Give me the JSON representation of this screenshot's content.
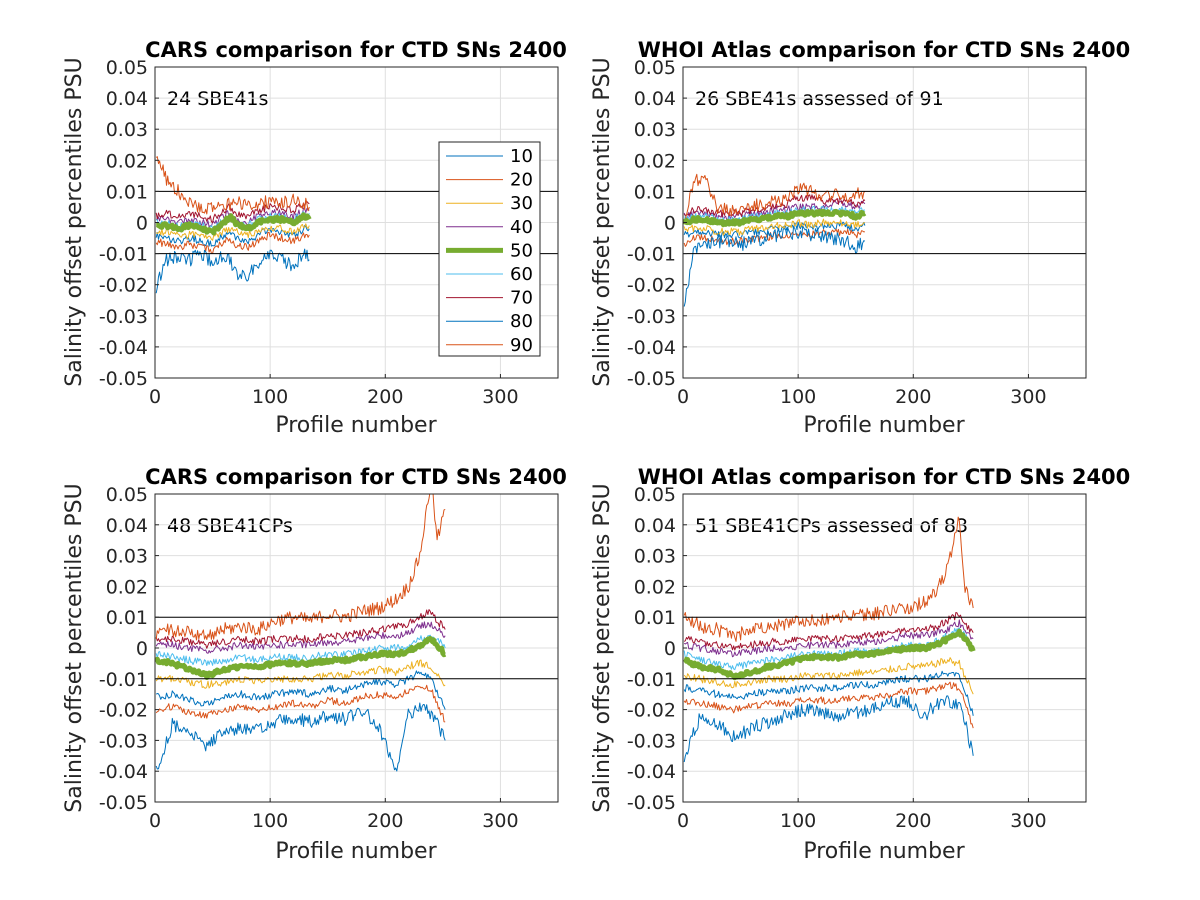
{
  "figure": {
    "background": "#ffffff",
    "colors": {
      "10": "#0072BD",
      "20": "#D95319",
      "30": "#EDB120",
      "40": "#7E2F8E",
      "50": "#77AC30",
      "60": "#4DBEEE",
      "70": "#A2142F",
      "80": "#0072BD",
      "90": "#D95319",
      "reference": "#000000",
      "grid": "#DFDFDF"
    }
  },
  "legend": {
    "placement": "right, inside top-left panel",
    "entries": [
      "10",
      "20",
      "30",
      "40",
      "50",
      "60",
      "70",
      "80",
      "90"
    ]
  },
  "chart_data": [
    {
      "type": "line",
      "title": "CARS comparison for CTD SNs 2400",
      "annotation": "24 SBE41s",
      "xlabel": "Profile number",
      "ylabel": "Salinity offset percentiles PSU",
      "xlim": [
        0,
        350
      ],
      "ylim": [
        -0.05,
        0.05
      ],
      "xticks": [
        "0",
        "100",
        "200",
        "300"
      ],
      "yticks": [
        "-0.05",
        "-0.04",
        "-0.03",
        "-0.02",
        "-0.01",
        "0",
        "0.01",
        "0.02",
        "0.03",
        "0.04",
        "0.05"
      ],
      "grid": true,
      "reference_lines": [
        0.01,
        -0.01
      ],
      "x": [
        1,
        10,
        20,
        30,
        40,
        50,
        60,
        65,
        70,
        80,
        90,
        100,
        110,
        120,
        130,
        134
      ],
      "series": [
        {
          "name": "10",
          "values": [
            -0.004,
            -0.005,
            -0.006,
            -0.005,
            -0.006,
            -0.007,
            -0.004,
            -0.003,
            -0.005,
            -0.006,
            -0.004,
            -0.002,
            -0.003,
            -0.004,
            -0.002,
            -0.002
          ]
        },
        {
          "name": "20",
          "values": [
            -0.006,
            -0.007,
            -0.008,
            -0.007,
            -0.008,
            -0.009,
            -0.006,
            -0.005,
            -0.007,
            -0.008,
            -0.006,
            -0.004,
            -0.005,
            -0.006,
            -0.004,
            -0.004
          ]
        },
        {
          "name": "30",
          "values": [
            -0.003,
            -0.003,
            -0.004,
            -0.004,
            -0.004,
            -0.005,
            -0.003,
            -0.002,
            -0.003,
            -0.004,
            -0.003,
            -0.002,
            -0.002,
            -0.003,
            -0.001,
            -0.001
          ]
        },
        {
          "name": "40",
          "values": [
            0.001,
            0.001,
            0.0,
            0.001,
            0.0,
            -0.001,
            0.002,
            0.003,
            0.001,
            0.0,
            0.002,
            0.003,
            0.003,
            0.002,
            0.004,
            0.004
          ]
        },
        {
          "name": "50",
          "values": [
            -0.001,
            -0.001,
            -0.002,
            -0.001,
            -0.002,
            -0.003,
            0.0,
            0.002,
            0.0,
            -0.002,
            0.0,
            0.001,
            0.001,
            0.0,
            0.002,
            0.001
          ]
        },
        {
          "name": "60",
          "values": [
            0.0,
            0.0,
            -0.001,
            0.0,
            -0.001,
            -0.002,
            0.001,
            0.002,
            0.0,
            -0.001,
            0.001,
            0.002,
            0.002,
            0.001,
            0.003,
            0.003
          ]
        },
        {
          "name": "70",
          "values": [
            0.002,
            0.003,
            0.002,
            0.003,
            0.002,
            0.001,
            0.004,
            0.005,
            0.003,
            0.002,
            0.004,
            0.005,
            0.005,
            0.004,
            0.006,
            0.006
          ]
        },
        {
          "name": "80",
          "values": [
            -0.021,
            -0.012,
            -0.011,
            -0.012,
            -0.01,
            -0.013,
            -0.011,
            -0.012,
            -0.016,
            -0.017,
            -0.013,
            -0.011,
            -0.012,
            -0.014,
            -0.01,
            -0.012
          ]
        },
        {
          "name": "90",
          "values": [
            0.022,
            0.014,
            0.01,
            0.007,
            0.004,
            0.005,
            0.006,
            0.006,
            0.007,
            0.005,
            0.006,
            0.007,
            0.006,
            0.007,
            0.006,
            0.005
          ]
        }
      ]
    },
    {
      "type": "line",
      "title": "WHOI Atlas comparison for CTD SNs 2400",
      "annotation": "26 SBE41s assessed of 91",
      "xlabel": "Profile number",
      "ylabel": "Salinity offset percentiles PSU",
      "xlim": [
        0,
        350
      ],
      "ylim": [
        -0.05,
        0.05
      ],
      "xticks": [
        "0",
        "100",
        "200",
        "300"
      ],
      "yticks": [
        "-0.05",
        "-0.04",
        "-0.03",
        "-0.02",
        "-0.01",
        "0",
        "0.01",
        "0.02",
        "0.03",
        "0.04",
        "0.05"
      ],
      "grid": true,
      "reference_lines": [
        0.01,
        -0.01
      ],
      "x": [
        1,
        10,
        20,
        30,
        40,
        50,
        60,
        70,
        80,
        90,
        100,
        110,
        120,
        130,
        140,
        150,
        158
      ],
      "series": [
        {
          "name": "10",
          "values": [
            -0.004,
            -0.003,
            -0.003,
            -0.004,
            -0.004,
            -0.004,
            -0.003,
            -0.003,
            -0.002,
            -0.002,
            -0.001,
            -0.002,
            -0.001,
            -0.001,
            -0.001,
            -0.002,
            -0.001
          ]
        },
        {
          "name": "20",
          "values": [
            -0.007,
            -0.005,
            -0.005,
            -0.006,
            -0.006,
            -0.006,
            -0.005,
            -0.005,
            -0.004,
            -0.004,
            -0.003,
            -0.004,
            -0.003,
            -0.003,
            -0.003,
            -0.004,
            -0.003
          ]
        },
        {
          "name": "30",
          "values": [
            -0.002,
            -0.002,
            -0.002,
            -0.003,
            -0.003,
            -0.003,
            -0.002,
            -0.002,
            -0.001,
            -0.001,
            0.0,
            -0.001,
            0.0,
            0.0,
            0.0,
            -0.001,
            0.0
          ]
        },
        {
          "name": "40",
          "values": [
            0.002,
            0.003,
            0.003,
            0.002,
            0.002,
            0.002,
            0.003,
            0.003,
            0.004,
            0.004,
            0.005,
            0.005,
            0.005,
            0.006,
            0.006,
            0.005,
            0.006
          ]
        },
        {
          "name": "50",
          "values": [
            0.0,
            0.001,
            0.001,
            0.0,
            0.0,
            0.0,
            0.001,
            0.001,
            0.002,
            0.002,
            0.003,
            0.003,
            0.003,
            0.003,
            0.003,
            0.002,
            0.003
          ]
        },
        {
          "name": "60",
          "values": [
            0.001,
            0.002,
            0.002,
            0.001,
            0.001,
            0.001,
            0.002,
            0.002,
            0.003,
            0.003,
            0.004,
            0.004,
            0.004,
            0.004,
            0.004,
            0.003,
            0.004
          ]
        },
        {
          "name": "70",
          "values": [
            0.003,
            0.004,
            0.004,
            0.003,
            0.003,
            0.003,
            0.004,
            0.004,
            0.005,
            0.006,
            0.008,
            0.008,
            0.007,
            0.007,
            0.007,
            0.006,
            0.007
          ]
        },
        {
          "name": "80",
          "values": [
            -0.027,
            -0.008,
            -0.007,
            -0.006,
            -0.006,
            -0.007,
            -0.006,
            -0.005,
            -0.004,
            -0.004,
            -0.003,
            -0.004,
            -0.004,
            -0.005,
            -0.006,
            -0.008,
            -0.006
          ]
        },
        {
          "name": "90",
          "values": [
            -0.001,
            0.014,
            0.013,
            0.005,
            0.004,
            0.004,
            0.005,
            0.006,
            0.007,
            0.008,
            0.011,
            0.01,
            0.009,
            0.009,
            0.008,
            0.009,
            0.01
          ]
        }
      ]
    },
    {
      "type": "line",
      "title": "CARS comparison for CTD SNs 2400",
      "annotation": "48 SBE41CPs",
      "xlabel": "Profile number",
      "ylabel": "Salinity offset percentiles PSU",
      "xlim": [
        0,
        350
      ],
      "ylim": [
        -0.05,
        0.05
      ],
      "xticks": [
        "0",
        "100",
        "200",
        "300"
      ],
      "yticks": [
        "-0.05",
        "-0.04",
        "-0.03",
        "-0.02",
        "-0.01",
        "0",
        "0.01",
        "0.02",
        "0.03",
        "0.04",
        "0.05"
      ],
      "grid": true,
      "reference_lines": [
        0.01,
        -0.01
      ],
      "x": [
        1,
        15,
        30,
        45,
        60,
        75,
        90,
        105,
        120,
        135,
        150,
        165,
        180,
        195,
        210,
        220,
        230,
        240,
        245,
        252
      ],
      "series": [
        {
          "name": "10",
          "values": [
            -0.016,
            -0.015,
            -0.017,
            -0.018,
            -0.016,
            -0.015,
            -0.016,
            -0.015,
            -0.014,
            -0.015,
            -0.013,
            -0.014,
            -0.012,
            -0.011,
            -0.012,
            -0.01,
            -0.008,
            -0.01,
            -0.014,
            -0.02
          ]
        },
        {
          "name": "20",
          "values": [
            -0.02,
            -0.019,
            -0.021,
            -0.022,
            -0.02,
            -0.019,
            -0.02,
            -0.019,
            -0.018,
            -0.019,
            -0.017,
            -0.018,
            -0.016,
            -0.015,
            -0.016,
            -0.014,
            -0.012,
            -0.014,
            -0.018,
            -0.024
          ]
        },
        {
          "name": "30",
          "values": [
            -0.01,
            -0.01,
            -0.011,
            -0.012,
            -0.011,
            -0.01,
            -0.011,
            -0.01,
            -0.01,
            -0.01,
            -0.009,
            -0.009,
            -0.008,
            -0.007,
            -0.008,
            -0.006,
            -0.005,
            -0.006,
            -0.008,
            -0.012
          ]
        },
        {
          "name": "40",
          "values": [
            0.001,
            0.001,
            0.0,
            -0.001,
            0.0,
            0.001,
            0.0,
            0.001,
            0.001,
            0.001,
            0.002,
            0.002,
            0.003,
            0.004,
            0.004,
            0.005,
            0.007,
            0.008,
            0.006,
            0.004
          ]
        },
        {
          "name": "50",
          "values": [
            -0.004,
            -0.005,
            -0.007,
            -0.009,
            -0.007,
            -0.006,
            -0.006,
            -0.005,
            -0.005,
            -0.005,
            -0.004,
            -0.004,
            -0.003,
            -0.002,
            -0.002,
            -0.001,
            0.001,
            0.003,
            0.001,
            -0.002
          ]
        },
        {
          "name": "60",
          "values": [
            -0.002,
            -0.003,
            -0.004,
            -0.005,
            -0.004,
            -0.003,
            -0.004,
            -0.003,
            -0.003,
            -0.003,
            -0.002,
            -0.002,
            -0.001,
            0.0,
            0.0,
            0.001,
            0.003,
            0.004,
            0.003,
            0.0
          ]
        },
        {
          "name": "70",
          "values": [
            0.003,
            0.003,
            0.002,
            0.001,
            0.002,
            0.003,
            0.002,
            0.003,
            0.003,
            0.003,
            0.004,
            0.004,
            0.005,
            0.006,
            0.007,
            0.008,
            0.01,
            0.012,
            0.009,
            0.006
          ]
        },
        {
          "name": "80",
          "values": [
            -0.04,
            -0.025,
            -0.028,
            -0.032,
            -0.027,
            -0.026,
            -0.027,
            -0.024,
            -0.023,
            -0.024,
            -0.022,
            -0.023,
            -0.02,
            -0.026,
            -0.04,
            -0.022,
            -0.019,
            -0.021,
            -0.024,
            -0.03
          ]
        },
        {
          "name": "90",
          "values": [
            0.005,
            0.006,
            0.005,
            0.004,
            0.006,
            0.007,
            0.006,
            0.009,
            0.01,
            0.009,
            0.011,
            0.01,
            0.012,
            0.013,
            0.016,
            0.02,
            0.03,
            0.055,
            0.035,
            0.045
          ]
        }
      ]
    },
    {
      "type": "line",
      "title": "WHOI Atlas comparison for CTD SNs 2400",
      "annotation": "51 SBE41CPs assessed of 83",
      "xlabel": "Profile number",
      "ylabel": "Salinity offset percentiles PSU",
      "xlim": [
        0,
        350
      ],
      "ylim": [
        -0.05,
        0.05
      ],
      "xticks": [
        "0",
        "100",
        "200",
        "300"
      ],
      "yticks": [
        "-0.05",
        "-0.04",
        "-0.03",
        "-0.02",
        "-0.01",
        "0",
        "0.01",
        "0.02",
        "0.03",
        "0.04",
        "0.05"
      ],
      "grid": true,
      "reference_lines": [
        0.01,
        -0.01
      ],
      "x": [
        1,
        15,
        30,
        45,
        60,
        75,
        90,
        105,
        120,
        135,
        150,
        165,
        180,
        195,
        210,
        220,
        230,
        240,
        245,
        252
      ],
      "series": [
        {
          "name": "10",
          "values": [
            -0.013,
            -0.014,
            -0.015,
            -0.016,
            -0.015,
            -0.014,
            -0.014,
            -0.013,
            -0.013,
            -0.013,
            -0.012,
            -0.012,
            -0.011,
            -0.01,
            -0.01,
            -0.009,
            -0.008,
            -0.009,
            -0.014,
            -0.022
          ]
        },
        {
          "name": "20",
          "values": [
            -0.017,
            -0.018,
            -0.019,
            -0.02,
            -0.019,
            -0.018,
            -0.018,
            -0.017,
            -0.017,
            -0.017,
            -0.016,
            -0.016,
            -0.015,
            -0.014,
            -0.014,
            -0.013,
            -0.012,
            -0.013,
            -0.018,
            -0.026
          ]
        },
        {
          "name": "30",
          "values": [
            -0.009,
            -0.01,
            -0.011,
            -0.012,
            -0.011,
            -0.01,
            -0.01,
            -0.009,
            -0.009,
            -0.009,
            -0.008,
            -0.008,
            -0.007,
            -0.006,
            -0.006,
            -0.005,
            -0.004,
            -0.005,
            -0.009,
            -0.015
          ]
        },
        {
          "name": "40",
          "values": [
            0.001,
            0.0,
            -0.001,
            -0.002,
            -0.001,
            0.0,
            0.0,
            0.001,
            0.001,
            0.001,
            0.002,
            0.002,
            0.003,
            0.004,
            0.004,
            0.005,
            0.006,
            0.008,
            0.006,
            0.003
          ]
        },
        {
          "name": "50",
          "values": [
            -0.004,
            -0.006,
            -0.007,
            -0.009,
            -0.008,
            -0.006,
            -0.005,
            -0.003,
            -0.003,
            -0.003,
            -0.002,
            -0.002,
            -0.001,
            0.0,
            0.0,
            0.001,
            0.003,
            0.005,
            0.003,
            -0.001
          ]
        },
        {
          "name": "60",
          "values": [
            -0.002,
            -0.004,
            -0.005,
            -0.006,
            -0.005,
            -0.004,
            -0.003,
            -0.002,
            -0.002,
            -0.002,
            -0.001,
            -0.001,
            0.0,
            0.001,
            0.001,
            0.002,
            0.004,
            0.006,
            0.004,
            0.0
          ]
        },
        {
          "name": "70",
          "values": [
            0.003,
            0.002,
            0.001,
            0.0,
            0.001,
            0.002,
            0.002,
            0.003,
            0.003,
            0.003,
            0.004,
            0.004,
            0.005,
            0.006,
            0.006,
            0.007,
            0.009,
            0.011,
            0.008,
            0.005
          ]
        },
        {
          "name": "80",
          "values": [
            -0.036,
            -0.022,
            -0.025,
            -0.029,
            -0.026,
            -0.024,
            -0.022,
            -0.02,
            -0.021,
            -0.022,
            -0.021,
            -0.02,
            -0.018,
            -0.017,
            -0.022,
            -0.018,
            -0.017,
            -0.019,
            -0.024,
            -0.035
          ]
        },
        {
          "name": "90",
          "values": [
            0.011,
            0.007,
            0.006,
            0.004,
            0.006,
            0.007,
            0.008,
            0.009,
            0.009,
            0.01,
            0.011,
            0.011,
            0.012,
            0.013,
            0.015,
            0.018,
            0.026,
            0.042,
            0.02,
            0.013
          ]
        }
      ]
    }
  ]
}
